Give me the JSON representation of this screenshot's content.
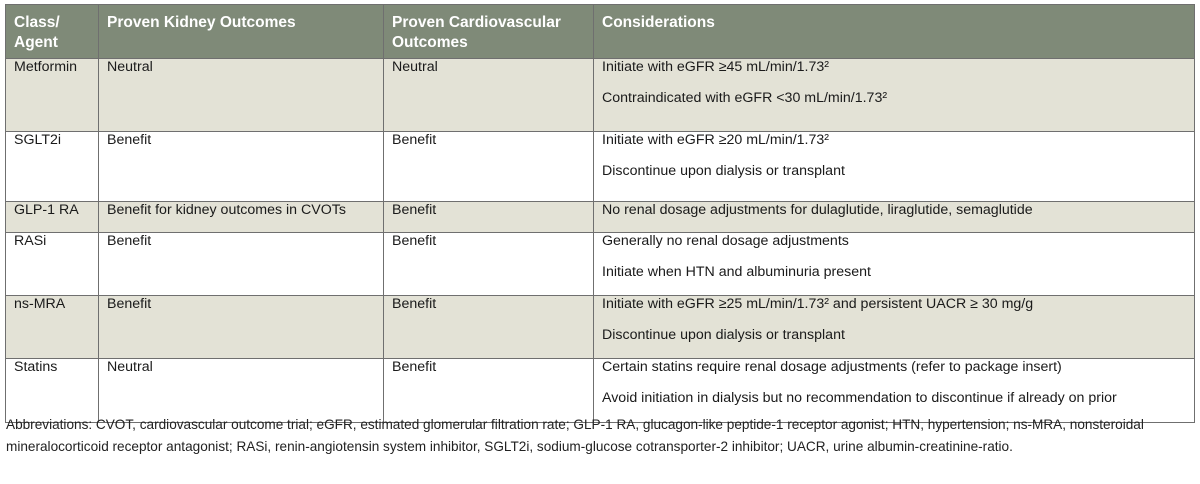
{
  "table": {
    "headers": [
      "Class/ Agent",
      "Proven Kidney Outcomes",
      "Proven Cardiovascular Outcomes",
      "Considerations"
    ],
    "rows": [
      {
        "agent": "Metformin",
        "kidney": "Neutral",
        "cardio": "Neutral",
        "considerations": [
          "Initiate with eGFR ≥45 mL/min/1.73²",
          "Contraindicated with eGFR <30 mL/min/1.73²"
        ]
      },
      {
        "agent": "SGLT2i",
        "kidney": "Benefit",
        "cardio": "Benefit",
        "considerations": [
          "Initiate with eGFR ≥20 mL/min/1.73²",
          "Discontinue upon dialysis or transplant"
        ]
      },
      {
        "agent": "GLP-1 RA",
        "kidney": "Benefit for kidney outcomes in CVOTs",
        "cardio": "Benefit",
        "considerations": [
          "No renal dosage adjustments for dulaglutide, liraglutide, semaglutide"
        ]
      },
      {
        "agent": "RASi",
        "kidney": "Benefit",
        "cardio": "Benefit",
        "considerations": [
          "Generally no renal dosage adjustments",
          "Initiate when HTN and albuminuria present"
        ]
      },
      {
        "agent": "ns-MRA",
        "kidney": "Benefit",
        "cardio": "Benefit",
        "considerations": [
          "Initiate with eGFR ≥25 mL/min/1.73² and persistent UACR ≥ 30 mg/g",
          "Discontinue upon dialysis or transplant"
        ]
      },
      {
        "agent": "Statins",
        "kidney": "Neutral",
        "cardio": "Benefit",
        "considerations": [
          "Certain statins require renal dosage adjustments (refer to package insert)",
          "Avoid initiation in dialysis but no recommendation to discontinue if already on prior"
        ]
      }
    ]
  },
  "footnote": "Abbreviations: CVOT, cardiovascular outcome trial; eGFR, estimated glomerular filtration rate; GLP-1 RA, glucagon-like peptide-1 receptor agonist; HTN, hypertension; ns-MRA, nonsteroidal mineralocorticoid receptor antagonist; RASi, renin-angiotensin system inhibitor, SGLT2i, sodium-glucose cotransporter-2 inhibitor; UACR, urine albumin-creatinine-ratio.",
  "colors": {
    "header_bg": "#7f8a78",
    "shaded_row_bg": "#e3e2d6",
    "border": "#6f6f6f"
  }
}
